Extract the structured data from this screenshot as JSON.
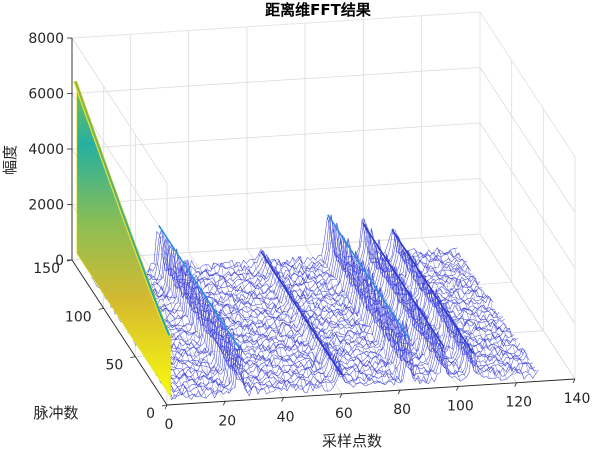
{
  "chart_data": {
    "type": "surface",
    "title": "距离维FFT结果",
    "xlabel": "采样点数",
    "ylabel": "脉冲数",
    "zlabel": "幅度",
    "x_ticks": [
      0,
      20,
      40,
      60,
      80,
      100,
      120,
      140
    ],
    "y_ticks": [
      0,
      50,
      100,
      150
    ],
    "z_ticks": [
      0,
      2000,
      4000,
      6000,
      8000
    ],
    "xlim": [
      0,
      140
    ],
    "ylim": [
      0,
      150
    ],
    "zlim": [
      0,
      8000
    ],
    "grid": true,
    "colormap": "parula",
    "mesh_color": "#3b3fd6",
    "x_samples": 128,
    "y_pulses": 128,
    "peaks": [
      {
        "x": 0,
        "z_at_y0": 2500,
        "z_at_y150": 6500,
        "note": "DC wall"
      },
      {
        "x": 25,
        "z": 1900
      },
      {
        "x": 60,
        "z": 700
      },
      {
        "x": 83,
        "z": 1900
      },
      {
        "x": 95,
        "z": 1500
      },
      {
        "x": 105,
        "z": 1200
      }
    ],
    "noise_floor_z": [
      100,
      700
    ]
  }
}
